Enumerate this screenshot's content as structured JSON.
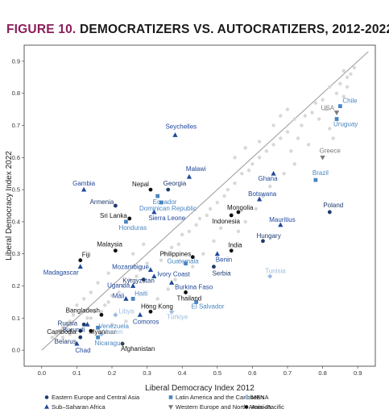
{
  "figure_label": "FIGURE 10.",
  "figure_title": "DEMOCRATIZERS VS. AUTOCRATIZERS, 2012-2022",
  "colors": {
    "eecasia": "#1f3b6e",
    "latam": "#4a86c0",
    "mena": "#9cbde0",
    "weurna": "#7a7a7a",
    "ssafrica": "#20489a",
    "asiapac": "#111111",
    "background_points": "#d8d8d8",
    "diagonal": "#9a9a9a"
  },
  "chart_data": {
    "type": "scatter",
    "xlabel": "Liberal Democracy Index 2012",
    "ylabel": "Liberal Democracy Index 2022",
    "xlim": [
      -0.05,
      0.95
    ],
    "ylim": [
      -0.05,
      0.95
    ],
    "xticks": [
      "0.0",
      "0.1",
      "0.2",
      "0.3",
      "0.4",
      "0.5",
      "0.6",
      "0.7",
      "0.8",
      "0.9"
    ],
    "yticks": [
      "0.0",
      "0.1",
      "0.2",
      "0.3",
      "0.4",
      "0.5",
      "0.6",
      "0.7",
      "0.8",
      "0.9"
    ],
    "grid": false,
    "diagonal_reference": true,
    "legend_placement": "bottom",
    "legend": [
      {
        "group": "eecasia",
        "label": "Eastern Europe and Central Asia",
        "marker": "circle"
      },
      {
        "group": "latam",
        "label": "Latin America and the Caribbean",
        "marker": "square"
      },
      {
        "group": "mena",
        "label": "MENA",
        "marker": "diamond"
      },
      {
        "group": "ssafrica",
        "label": "Sub–Saharan Africa",
        "marker": "triangle"
      },
      {
        "group": "weurna",
        "label": "Western Europe and North America",
        "marker": "triangle-down"
      },
      {
        "group": "asiapac",
        "label": "Asia–Pacific",
        "marker": "circle"
      }
    ],
    "labeled_points": [
      {
        "name": "Chile",
        "group": "latam",
        "x": 0.85,
        "y": 0.76
      },
      {
        "name": "USA",
        "group": "weurna",
        "x": 0.84,
        "y": 0.74
      },
      {
        "name": "Uruguay",
        "group": "latam",
        "x": 0.84,
        "y": 0.72
      },
      {
        "name": "Greece",
        "group": "weurna",
        "x": 0.8,
        "y": 0.6
      },
      {
        "name": "Seychelles",
        "group": "ssafrica",
        "x": 0.38,
        "y": 0.67
      },
      {
        "name": "Brazil",
        "group": "latam",
        "x": 0.78,
        "y": 0.53
      },
      {
        "name": "Ghana",
        "group": "ssafrica",
        "x": 0.66,
        "y": 0.55
      },
      {
        "name": "Malawi",
        "group": "ssafrica",
        "x": 0.42,
        "y": 0.54
      },
      {
        "name": "Gambia",
        "group": "ssafrica",
        "x": 0.12,
        "y": 0.5
      },
      {
        "name": "Nepal",
        "group": "asiapac",
        "x": 0.31,
        "y": 0.5
      },
      {
        "name": "Georgia",
        "group": "eecasia",
        "x": 0.36,
        "y": 0.5
      },
      {
        "name": "Ecuador",
        "group": "latam",
        "x": 0.33,
        "y": 0.48
      },
      {
        "name": "Botswana",
        "group": "ssafrica",
        "x": 0.62,
        "y": 0.47
      },
      {
        "name": "Armenia",
        "group": "eecasia",
        "x": 0.21,
        "y": 0.45
      },
      {
        "name": "Dominican Republic",
        "group": "latam",
        "x": 0.34,
        "y": 0.46
      },
      {
        "name": "Mongolia",
        "group": "asiapac",
        "x": 0.56,
        "y": 0.43
      },
      {
        "name": "Poland",
        "group": "eecasia",
        "x": 0.82,
        "y": 0.43
      },
      {
        "name": "Sri Lanka",
        "group": "asiapac",
        "x": 0.25,
        "y": 0.41
      },
      {
        "name": "Sierra Leone",
        "group": "ssafrica",
        "x": 0.32,
        "y": 0.43
      },
      {
        "name": "Indonesia",
        "group": "asiapac",
        "x": 0.54,
        "y": 0.42
      },
      {
        "name": "Honduras",
        "group": "latam",
        "x": 0.24,
        "y": 0.4
      },
      {
        "name": "Mauritius",
        "group": "ssafrica",
        "x": 0.68,
        "y": 0.39
      },
      {
        "name": "Hungary",
        "group": "eecasia",
        "x": 0.63,
        "y": 0.34
      },
      {
        "name": "India",
        "group": "asiapac",
        "x": 0.54,
        "y": 0.31
      },
      {
        "name": "Malaysia",
        "group": "asiapac",
        "x": 0.21,
        "y": 0.31
      },
      {
        "name": "Philippines",
        "group": "asiapac",
        "x": 0.43,
        "y": 0.29
      },
      {
        "name": "Benin",
        "group": "ssafrica",
        "x": 0.5,
        "y": 0.3
      },
      {
        "name": "Fiji",
        "group": "asiapac",
        "x": 0.11,
        "y": 0.28
      },
      {
        "name": "Guatemala",
        "group": "latam",
        "x": 0.41,
        "y": 0.27
      },
      {
        "name": "Madagascar",
        "group": "ssafrica",
        "x": 0.11,
        "y": 0.26
      },
      {
        "name": "Mozambique",
        "group": "ssafrica",
        "x": 0.31,
        "y": 0.25
      },
      {
        "name": "Serbia",
        "group": "eecasia",
        "x": 0.49,
        "y": 0.26
      },
      {
        "name": "Tunisia",
        "group": "mena",
        "x": 0.65,
        "y": 0.23
      },
      {
        "name": "Ivory Coast",
        "group": "ssafrica",
        "x": 0.32,
        "y": 0.23
      },
      {
        "name": "Kyrgyzstan",
        "group": "eecasia",
        "x": 0.29,
        "y": 0.22
      },
      {
        "name": "Burkina Faso",
        "group": "ssafrica",
        "x": 0.37,
        "y": 0.21
      },
      {
        "name": "Uganda",
        "group": "ssafrica",
        "x": 0.26,
        "y": 0.2
      },
      {
        "name": "Mali",
        "group": "ssafrica",
        "x": 0.24,
        "y": 0.16
      },
      {
        "name": "Haiti",
        "group": "latam",
        "x": 0.26,
        "y": 0.16
      },
      {
        "name": "Thailand",
        "group": "asiapac",
        "x": 0.41,
        "y": 0.18
      },
      {
        "name": "Hong Kong",
        "group": "asiapac",
        "x": 0.31,
        "y": 0.12
      },
      {
        "name": "El Salvador",
        "group": "latam",
        "x": 0.44,
        "y": 0.15
      },
      {
        "name": "Bangladesh",
        "group": "asiapac",
        "x": 0.17,
        "y": 0.11
      },
      {
        "name": "Libya",
        "group": "mena",
        "x": 0.21,
        "y": 0.11
      },
      {
        "name": "Comoros",
        "group": "ssafrica",
        "x": 0.28,
        "y": 0.11
      },
      {
        "name": "Türkiye",
        "group": "mena",
        "x": 0.37,
        "y": 0.12
      },
      {
        "name": "Russia",
        "group": "eecasia",
        "x": 0.12,
        "y": 0.08
      },
      {
        "name": "Burundi",
        "group": "ssafrica",
        "x": 0.13,
        "y": 0.08
      },
      {
        "name": "Venezuela",
        "group": "latam",
        "x": 0.16,
        "y": 0.07
      },
      {
        "name": "Cambodia",
        "group": "asiapac",
        "x": 0.11,
        "y": 0.06
      },
      {
        "name": "Myanmar",
        "group": "asiapac",
        "x": 0.14,
        "y": 0.06
      },
      {
        "name": "Yemen",
        "group": "mena",
        "x": 0.17,
        "y": 0.05
      },
      {
        "name": "Belarus",
        "group": "eecasia",
        "x": 0.11,
        "y": 0.04
      },
      {
        "name": "Nicaragua",
        "group": "latam",
        "x": 0.16,
        "y": 0.04
      },
      {
        "name": "Chad",
        "group": "ssafrica",
        "x": 0.1,
        "y": 0.02
      },
      {
        "name": "Afghanistan",
        "group": "asiapac",
        "x": 0.23,
        "y": 0.02
      }
    ],
    "unlabeled_points": [
      [
        0.86,
        0.87
      ],
      [
        0.87,
        0.85
      ],
      [
        0.88,
        0.86
      ],
      [
        0.89,
        0.88
      ],
      [
        0.87,
        0.82
      ],
      [
        0.85,
        0.83
      ],
      [
        0.84,
        0.8
      ],
      [
        0.86,
        0.79
      ],
      [
        0.82,
        0.82
      ],
      [
        0.8,
        0.78
      ],
      [
        0.78,
        0.77
      ],
      [
        0.77,
        0.74
      ],
      [
        0.81,
        0.75
      ],
      [
        0.79,
        0.72
      ],
      [
        0.75,
        0.73
      ],
      [
        0.74,
        0.7
      ],
      [
        0.72,
        0.72
      ],
      [
        0.7,
        0.68
      ],
      [
        0.68,
        0.66
      ],
      [
        0.66,
        0.64
      ],
      [
        0.71,
        0.62
      ],
      [
        0.73,
        0.66
      ],
      [
        0.64,
        0.62
      ],
      [
        0.62,
        0.6
      ],
      [
        0.6,
        0.58
      ],
      [
        0.59,
        0.56
      ],
      [
        0.57,
        0.55
      ],
      [
        0.55,
        0.52
      ],
      [
        0.53,
        0.5
      ],
      [
        0.52,
        0.48
      ],
      [
        0.5,
        0.46
      ],
      [
        0.48,
        0.44
      ],
      [
        0.47,
        0.42
      ],
      [
        0.45,
        0.41
      ],
      [
        0.44,
        0.39
      ],
      [
        0.42,
        0.37
      ],
      [
        0.4,
        0.36
      ],
      [
        0.39,
        0.33
      ],
      [
        0.37,
        0.32
      ],
      [
        0.35,
        0.3
      ],
      [
        0.34,
        0.28
      ],
      [
        0.3,
        0.27
      ],
      [
        0.28,
        0.25
      ],
      [
        0.27,
        0.23
      ],
      [
        0.25,
        0.22
      ],
      [
        0.23,
        0.2
      ],
      [
        0.22,
        0.18
      ],
      [
        0.2,
        0.17
      ],
      [
        0.19,
        0.15
      ],
      [
        0.18,
        0.14
      ],
      [
        0.17,
        0.12
      ],
      [
        0.15,
        0.12
      ],
      [
        0.14,
        0.1
      ],
      [
        0.13,
        0.1
      ],
      [
        0.09,
        0.11
      ],
      [
        0.08,
        0.09
      ],
      [
        0.07,
        0.08
      ],
      [
        0.06,
        0.07
      ],
      [
        0.05,
        0.06
      ],
      [
        0.04,
        0.05
      ],
      [
        0.06,
        0.04
      ],
      [
        0.03,
        0.04
      ],
      [
        0.08,
        0.05
      ],
      [
        0.2,
        0.08
      ],
      [
        0.24,
        0.09
      ],
      [
        0.3,
        0.14
      ],
      [
        0.33,
        0.16
      ],
      [
        0.36,
        0.19
      ],
      [
        0.38,
        0.22
      ],
      [
        0.43,
        0.26
      ],
      [
        0.46,
        0.3
      ],
      [
        0.49,
        0.34
      ],
      [
        0.51,
        0.38
      ],
      [
        0.56,
        0.37
      ],
      [
        0.58,
        0.4
      ],
      [
        0.61,
        0.44
      ],
      [
        0.63,
        0.48
      ],
      [
        0.65,
        0.51
      ],
      [
        0.69,
        0.55
      ],
      [
        0.72,
        0.58
      ],
      [
        0.76,
        0.64
      ],
      [
        0.82,
        0.69
      ],
      [
        0.83,
        0.66
      ],
      [
        0.66,
        0.7
      ],
      [
        0.68,
        0.73
      ],
      [
        0.7,
        0.75
      ],
      [
        0.62,
        0.65
      ],
      [
        0.58,
        0.63
      ],
      [
        0.55,
        0.6
      ],
      [
        0.19,
        0.24
      ],
      [
        0.16,
        0.21
      ],
      [
        0.14,
        0.18
      ],
      [
        0.12,
        0.16
      ],
      [
        0.1,
        0.14
      ],
      [
        0.26,
        0.3
      ],
      [
        0.29,
        0.33
      ]
    ]
  }
}
